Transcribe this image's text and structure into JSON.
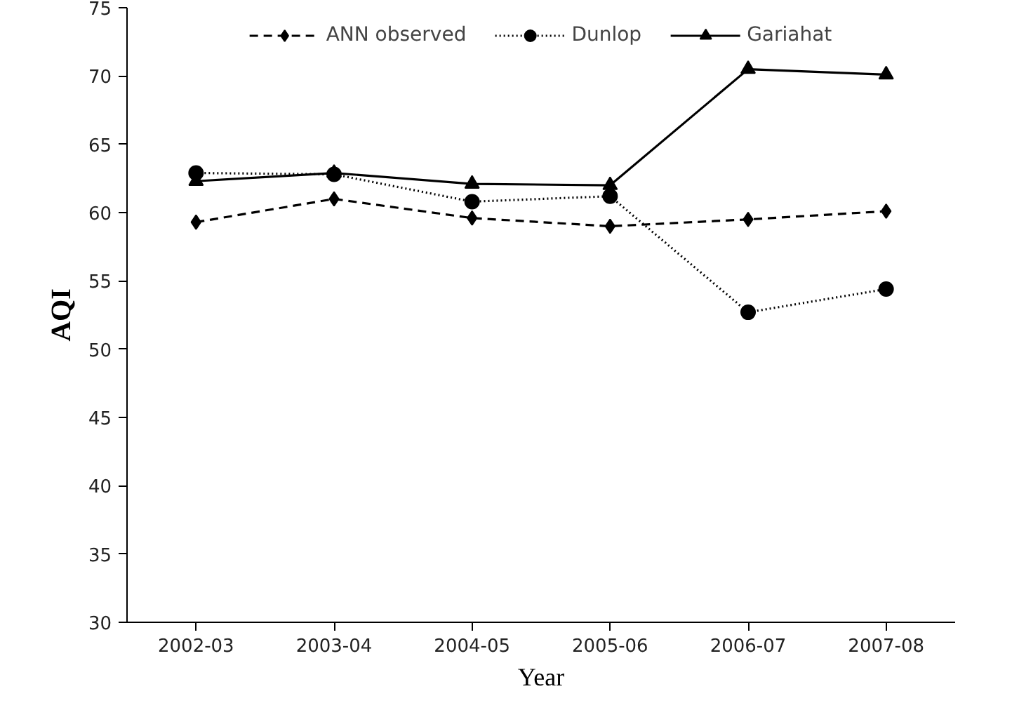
{
  "chart_data": {
    "type": "line",
    "xlabel": "Year",
    "ylabel": "AQI",
    "categories": [
      "2002-03",
      "2003-04",
      "2004-05",
      "2005-06",
      "2006-07",
      "2007-08"
    ],
    "ylim": [
      30,
      75
    ],
    "yticks": [
      30,
      35,
      40,
      45,
      50,
      55,
      60,
      65,
      70,
      75
    ],
    "grid": false,
    "legend": "top",
    "series": [
      {
        "name": "ANN observed",
        "color": "#000000",
        "line_style": "dashed",
        "marker": "diamond",
        "values": [
          59.3,
          61.0,
          59.6,
          59.0,
          59.5,
          60.1
        ]
      },
      {
        "name": "Dunlop",
        "color": "#000000",
        "line_style": "dotted",
        "marker": "circle",
        "values": [
          62.9,
          62.8,
          60.8,
          61.2,
          52.7,
          54.4
        ]
      },
      {
        "name": "Gariahat",
        "color": "#000000",
        "line_style": "solid",
        "marker": "triangle",
        "values": [
          62.3,
          62.9,
          62.1,
          62.0,
          70.5,
          70.1
        ]
      }
    ]
  }
}
